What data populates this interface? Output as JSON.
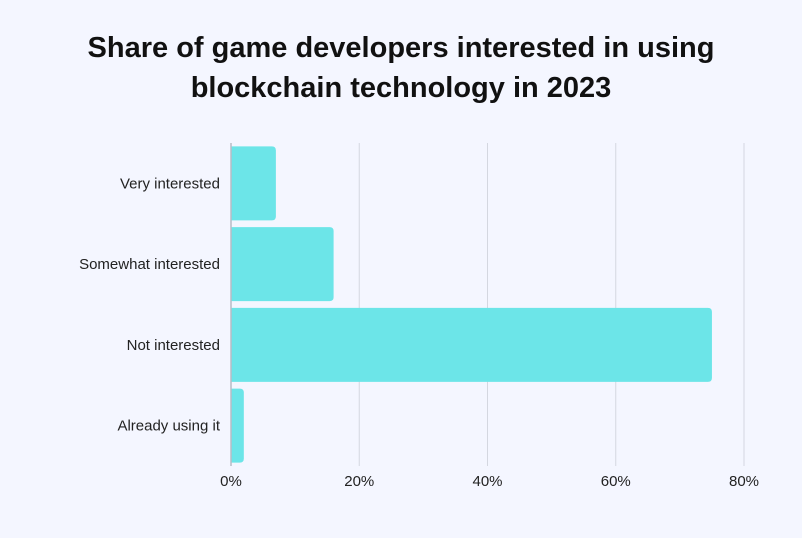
{
  "chart_data": {
    "type": "bar",
    "orientation": "horizontal",
    "title_lines": [
      "Share of game developers interested in using",
      "blockchain technology in 2023"
    ],
    "categories": [
      "Very interested",
      "Somewhat interested",
      "Not interested",
      "Already using it"
    ],
    "values": [
      7,
      16,
      75,
      2
    ],
    "unit": "%",
    "xlim": [
      0,
      80
    ],
    "xticks": [
      0,
      20,
      40,
      60,
      80
    ],
    "xtick_labels": [
      "0%",
      "20%",
      "40%",
      "60%",
      "80%"
    ],
    "grid": true,
    "bar_color": "#6ce5e8",
    "xlabel": "",
    "ylabel": ""
  }
}
